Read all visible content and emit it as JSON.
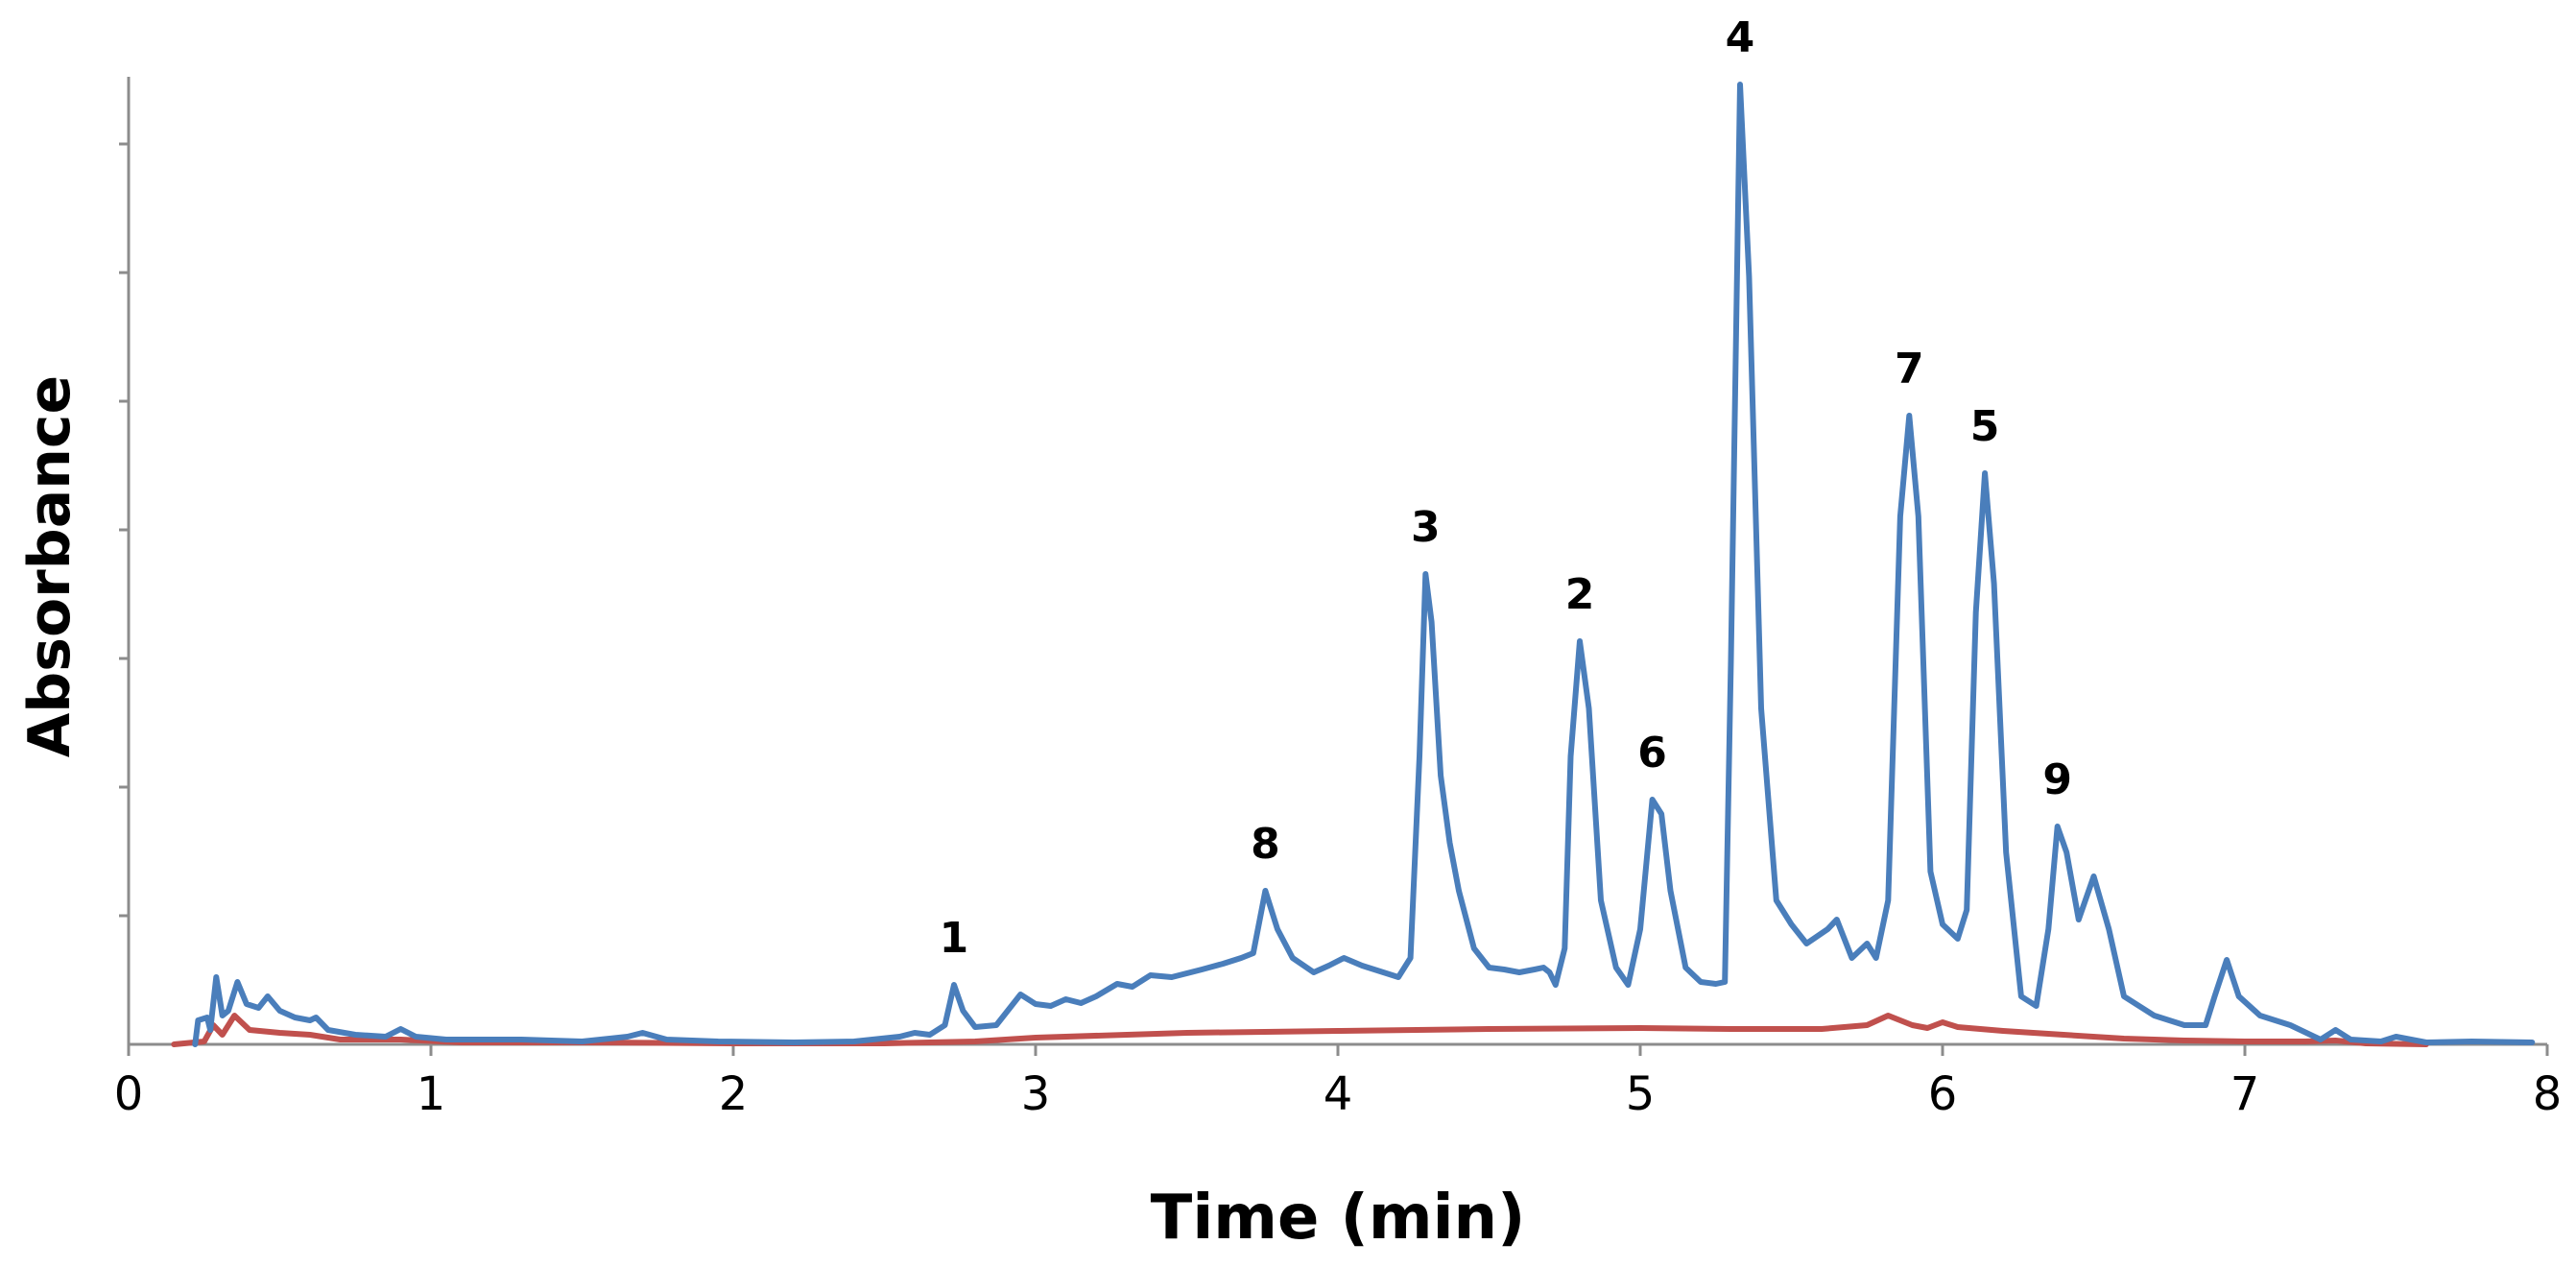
{
  "chart_data": {
    "type": "line",
    "xlabel": "Time (min)",
    "ylabel": "Absorbance",
    "xlim": [
      0,
      8
    ],
    "ylim": [
      0,
      100
    ],
    "x_ticks": [
      "0",
      "1",
      "2",
      "3",
      "4",
      "5",
      "6",
      "7",
      "8"
    ],
    "y_ticks_count": 7,
    "grid": false,
    "legend": "none",
    "series": [
      {
        "color": "#4a7ebb",
        "points": [
          [
            0.22,
            0
          ],
          [
            0.23,
            2.5
          ],
          [
            0.26,
            2.8
          ],
          [
            0.27,
            1.5
          ],
          [
            0.29,
            7.0
          ],
          [
            0.31,
            3.0
          ],
          [
            0.33,
            3.5
          ],
          [
            0.36,
            6.5
          ],
          [
            0.39,
            4.2
          ],
          [
            0.43,
            3.8
          ],
          [
            0.46,
            5.0
          ],
          [
            0.5,
            3.5
          ],
          [
            0.55,
            2.8
          ],
          [
            0.6,
            2.5
          ],
          [
            0.62,
            2.8
          ],
          [
            0.66,
            1.5
          ],
          [
            0.75,
            1.0
          ],
          [
            0.85,
            0.8
          ],
          [
            0.9,
            1.6
          ],
          [
            0.95,
            0.8
          ],
          [
            1.05,
            0.5
          ],
          [
            1.2,
            0.5
          ],
          [
            1.3,
            0.5
          ],
          [
            1.5,
            0.3
          ],
          [
            1.65,
            0.8
          ],
          [
            1.7,
            1.2
          ],
          [
            1.78,
            0.5
          ],
          [
            1.95,
            0.3
          ],
          [
            2.2,
            0.2
          ],
          [
            2.4,
            0.3
          ],
          [
            2.55,
            0.8
          ],
          [
            2.6,
            1.2
          ],
          [
            2.65,
            1.0
          ],
          [
            2.7,
            2.0
          ],
          [
            2.73,
            6.2
          ],
          [
            2.76,
            3.5
          ],
          [
            2.8,
            1.8
          ],
          [
            2.87,
            2.0
          ],
          [
            2.95,
            5.2
          ],
          [
            3.0,
            4.2
          ],
          [
            3.05,
            4.0
          ],
          [
            3.1,
            4.7
          ],
          [
            3.15,
            4.3
          ],
          [
            3.2,
            5.0
          ],
          [
            3.27,
            6.3
          ],
          [
            3.32,
            6.0
          ],
          [
            3.38,
            7.2
          ],
          [
            3.45,
            7.0
          ],
          [
            3.55,
            7.8
          ],
          [
            3.62,
            8.4
          ],
          [
            3.68,
            9.0
          ],
          [
            3.72,
            9.5
          ],
          [
            3.76,
            16.0
          ],
          [
            3.8,
            12.0
          ],
          [
            3.85,
            9.0
          ],
          [
            3.92,
            7.5
          ],
          [
            3.97,
            8.2
          ],
          [
            4.02,
            9.0
          ],
          [
            4.08,
            8.2
          ],
          [
            4.15,
            7.5
          ],
          [
            4.2,
            7.0
          ],
          [
            4.24,
            9.0
          ],
          [
            4.27,
            30.0
          ],
          [
            4.29,
            49.0
          ],
          [
            4.31,
            44.0
          ],
          [
            4.34,
            28.0
          ],
          [
            4.37,
            21.0
          ],
          [
            4.4,
            16.0
          ],
          [
            4.45,
            10.0
          ],
          [
            4.5,
            8.0
          ],
          [
            4.55,
            7.8
          ],
          [
            4.6,
            7.5
          ],
          [
            4.65,
            7.8
          ],
          [
            4.68,
            8.0
          ],
          [
            4.7,
            7.5
          ],
          [
            4.72,
            6.2
          ],
          [
            4.75,
            10.0
          ],
          [
            4.77,
            30.0
          ],
          [
            4.8,
            42.0
          ],
          [
            4.83,
            35.0
          ],
          [
            4.87,
            15.0
          ],
          [
            4.92,
            8.0
          ],
          [
            4.96,
            6.2
          ],
          [
            5.0,
            12.0
          ],
          [
            5.04,
            25.5
          ],
          [
            5.07,
            24.0
          ],
          [
            5.1,
            16.0
          ],
          [
            5.15,
            8.0
          ],
          [
            5.2,
            6.5
          ],
          [
            5.25,
            6.3
          ],
          [
            5.28,
            6.5
          ],
          [
            5.3,
            40.0
          ],
          [
            5.33,
            100.0
          ],
          [
            5.36,
            80.0
          ],
          [
            5.4,
            35.0
          ],
          [
            5.45,
            15.0
          ],
          [
            5.5,
            12.5
          ],
          [
            5.55,
            10.5
          ],
          [
            5.62,
            12.0
          ],
          [
            5.65,
            13.0
          ],
          [
            5.7,
            9.0
          ],
          [
            5.75,
            10.5
          ],
          [
            5.78,
            9.0
          ],
          [
            5.82,
            15.0
          ],
          [
            5.86,
            55.0
          ],
          [
            5.89,
            65.5
          ],
          [
            5.92,
            55.0
          ],
          [
            5.96,
            18.0
          ],
          [
            6.0,
            12.5
          ],
          [
            6.05,
            11.0
          ],
          [
            6.08,
            14.0
          ],
          [
            6.11,
            45.0
          ],
          [
            6.14,
            59.5
          ],
          [
            6.17,
            48.0
          ],
          [
            6.21,
            20.0
          ],
          [
            6.26,
            5.0
          ],
          [
            6.31,
            4.0
          ],
          [
            6.35,
            12.0
          ],
          [
            6.38,
            22.7
          ],
          [
            6.41,
            20.0
          ],
          [
            6.45,
            13.0
          ],
          [
            6.5,
            17.5
          ],
          [
            6.55,
            12.0
          ],
          [
            6.6,
            5.0
          ],
          [
            6.7,
            3.0
          ],
          [
            6.8,
            2.0
          ],
          [
            6.87,
            2.0
          ],
          [
            6.9,
            5.0
          ],
          [
            6.94,
            8.8
          ],
          [
            6.98,
            5.0
          ],
          [
            7.05,
            3.0
          ],
          [
            7.15,
            2.0
          ],
          [
            7.25,
            0.5
          ],
          [
            7.3,
            1.5
          ],
          [
            7.35,
            0.5
          ],
          [
            7.45,
            0.3
          ],
          [
            7.5,
            0.8
          ],
          [
            7.6,
            0.2
          ],
          [
            7.75,
            0.3
          ],
          [
            7.95,
            0.2
          ]
        ]
      },
      {
        "color": "#c0504d",
        "points": [
          [
            0.15,
            0
          ],
          [
            0.25,
            0.3
          ],
          [
            0.28,
            2.0
          ],
          [
            0.31,
            1.0
          ],
          [
            0.35,
            3.0
          ],
          [
            0.4,
            1.5
          ],
          [
            0.5,
            1.2
          ],
          [
            0.6,
            1.0
          ],
          [
            0.7,
            0.5
          ],
          [
            0.9,
            0.5
          ],
          [
            1.1,
            0.2
          ],
          [
            1.5,
            0.2
          ],
          [
            2.0,
            0.1
          ],
          [
            2.5,
            0.1
          ],
          [
            2.8,
            0.3
          ],
          [
            3.0,
            0.7
          ],
          [
            3.5,
            1.2
          ],
          [
            4.0,
            1.4
          ],
          [
            4.5,
            1.6
          ],
          [
            5.0,
            1.7
          ],
          [
            5.3,
            1.6
          ],
          [
            5.6,
            1.6
          ],
          [
            5.75,
            2.0
          ],
          [
            5.82,
            3.0
          ],
          [
            5.9,
            2.0
          ],
          [
            5.95,
            1.7
          ],
          [
            6.0,
            2.3
          ],
          [
            6.05,
            1.8
          ],
          [
            6.2,
            1.4
          ],
          [
            6.4,
            1.0
          ],
          [
            6.6,
            0.6
          ],
          [
            6.8,
            0.4
          ],
          [
            7.0,
            0.3
          ],
          [
            7.2,
            0.3
          ],
          [
            7.3,
            0.4
          ],
          [
            7.4,
            0.1
          ],
          [
            7.6,
            0
          ]
        ]
      }
    ],
    "annotations": [
      {
        "text": "1",
        "x": 2.73,
        "y": 6.2
      },
      {
        "text": "8",
        "x": 3.76,
        "y": 16.0
      },
      {
        "text": "3",
        "x": 4.29,
        "y": 49.0
      },
      {
        "text": "2",
        "x": 4.8,
        "y": 42.0
      },
      {
        "text": "6",
        "x": 5.04,
        "y": 25.5
      },
      {
        "text": "4",
        "x": 5.33,
        "y": 100.0
      },
      {
        "text": "7",
        "x": 5.89,
        "y": 65.5
      },
      {
        "text": "5",
        "x": 6.14,
        "y": 59.5
      },
      {
        "text": "9",
        "x": 6.38,
        "y": 22.7
      }
    ]
  }
}
